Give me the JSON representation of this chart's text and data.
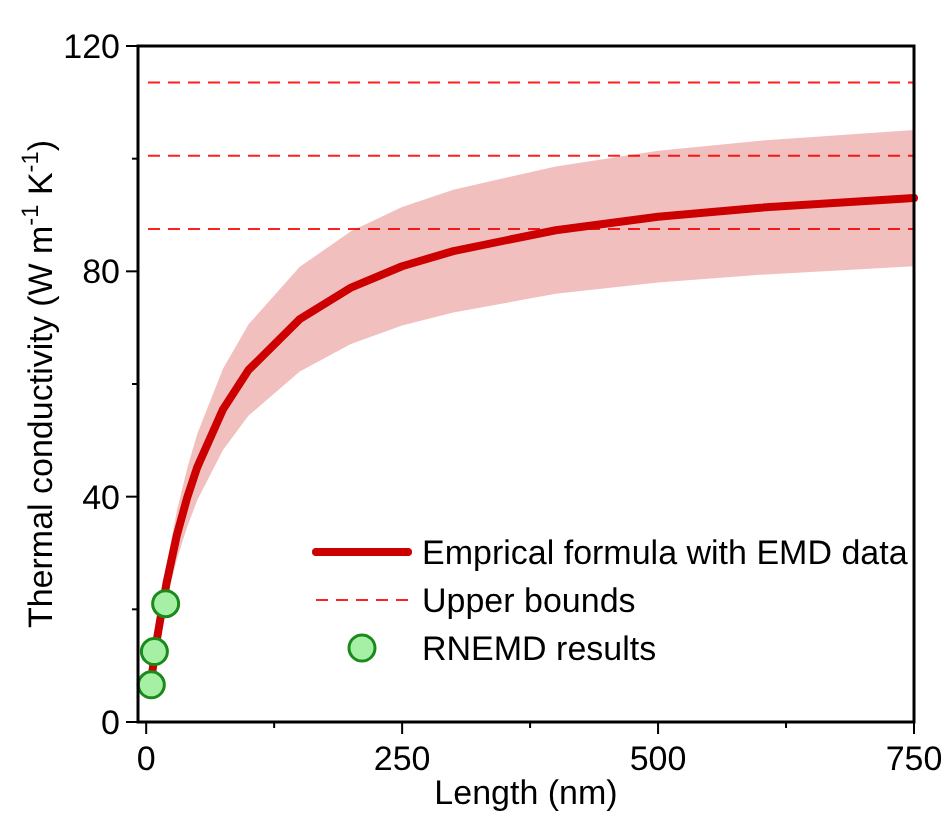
{
  "chart_data": {
    "type": "line",
    "xlabel": "Length (nm)",
    "ylabel": "Thermal conductivity (W m$^{-1}$ K$^{-1}$)",
    "xlim": [
      -8,
      750
    ],
    "ylim": [
      0,
      120
    ],
    "xticks": [
      0,
      {
        "value": 125,
        "label": null
      },
      250,
      {
        "value": 375,
        "label": null
      },
      500,
      {
        "value": 625,
        "label": null
      },
      750
    ],
    "yticks": [
      0,
      {
        "value": 20,
        "label": null
      },
      40,
      {
        "value": 60,
        "label": null
      },
      80,
      {
        "value": 100,
        "label": null
      },
      120
    ],
    "grid": false,
    "legend": "bottom right",
    "series": [
      {
        "name": "Emprical formula with EMD data",
        "color": "#cc0000",
        "line_style": "solid",
        "x": [
          5,
          10,
          20,
          30,
          40,
          50,
          75,
          100,
          150,
          200,
          250,
          300,
          400,
          500,
          600,
          750
        ],
        "values": [
          7.6,
          14.2,
          24.8,
          33.2,
          39.8,
          45.3,
          55.5,
          62.5,
          71.5,
          77.1,
          80.9,
          83.6,
          87.3,
          89.7,
          91.3,
          93.0
        ],
        "lower": [
          6.6,
          12.4,
          21.6,
          28.9,
          34.6,
          39.4,
          48.3,
          54.4,
          62.2,
          67.1,
          70.4,
          72.7,
          76.0,
          78.0,
          79.4,
          80.9
        ],
        "upper": [
          8.6,
          16.0,
          28.0,
          37.5,
          45.0,
          51.2,
          62.7,
          70.6,
          80.8,
          87.1,
          91.4,
          94.5,
          98.6,
          101.4,
          103.2,
          105.1
        ]
      },
      {
        "name": "RNEMD results",
        "type": "scatter",
        "color": "#a6f0a6",
        "marker": "circle",
        "x": [
          5,
          8,
          19
        ],
        "values": [
          6.6,
          12.5,
          21
        ]
      }
    ],
    "ref_lines": [
      {
        "axis": "y",
        "value": 113.5,
        "label": "Upper bounds",
        "color": "#ff2020",
        "line_style": "dashed"
      },
      {
        "axis": "y",
        "value": 100.5,
        "color": "#ff2020",
        "line_style": "dashed"
      },
      {
        "axis": "y",
        "value": 87.5,
        "color": "#ff2020",
        "line_style": "dashed"
      }
    ]
  }
}
